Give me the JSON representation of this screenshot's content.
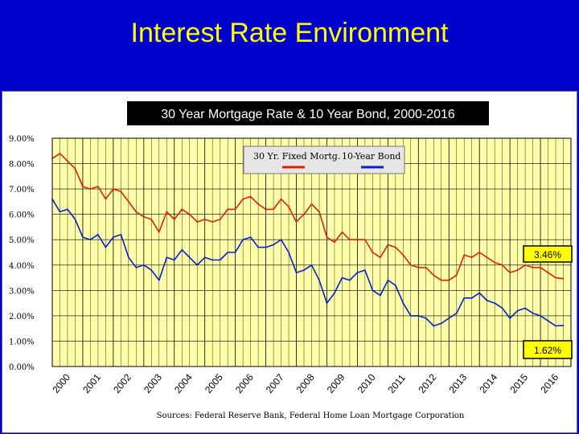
{
  "slide": {
    "title": "Interest Rate Environment"
  },
  "chart_data": {
    "type": "line",
    "title": "30 Year Mortgage Rate & 10 Year Bond, 2000-2016",
    "source": "Sources: Federal Reserve Bank, Federal Home Loan Mortgage Corporation",
    "ylim": [
      0,
      9
    ],
    "xlim": [
      2000,
      2017
    ],
    "y_ticks": [
      "0.00%",
      "1.00%",
      "2.00%",
      "3.00%",
      "4.00%",
      "5.00%",
      "6.00%",
      "7.00%",
      "8.00%",
      "9.00%"
    ],
    "x_ticks": [
      "2000",
      "2001",
      "2002",
      "2003",
      "2004",
      "2005",
      "2006",
      "2007",
      "2008",
      "2009",
      "2010",
      "2011",
      "2012",
      "2013",
      "2014",
      "2015",
      "2016"
    ],
    "grid": true,
    "legend_position": "top-center",
    "series": [
      {
        "name": "30 Yr. Fixed Mortg.",
        "color": "#dd2200",
        "x": [
          2000.0,
          2000.25,
          2000.5,
          2000.75,
          2001.0,
          2001.25,
          2001.5,
          2001.75,
          2002.0,
          2002.25,
          2002.5,
          2002.75,
          2003.0,
          2003.25,
          2003.5,
          2003.75,
          2004.0,
          2004.25,
          2004.5,
          2004.75,
          2005.0,
          2005.25,
          2005.5,
          2005.75,
          2006.0,
          2006.25,
          2006.5,
          2006.75,
          2007.0,
          2007.25,
          2007.5,
          2007.75,
          2008.0,
          2008.25,
          2008.5,
          2008.75,
          2009.0,
          2009.25,
          2009.5,
          2009.75,
          2010.0,
          2010.25,
          2010.5,
          2010.75,
          2011.0,
          2011.25,
          2011.5,
          2011.75,
          2012.0,
          2012.25,
          2012.5,
          2012.75,
          2013.0,
          2013.25,
          2013.5,
          2013.75,
          2014.0,
          2014.25,
          2014.5,
          2014.75,
          2015.0,
          2015.25,
          2015.5,
          2015.75,
          2016.0,
          2016.25,
          2016.5,
          2016.75
        ],
        "values": [
          8.2,
          8.4,
          8.1,
          7.8,
          7.1,
          7.0,
          7.1,
          6.6,
          7.0,
          6.9,
          6.5,
          6.1,
          5.9,
          5.8,
          5.3,
          6.1,
          5.8,
          6.2,
          6.0,
          5.7,
          5.8,
          5.7,
          5.8,
          6.2,
          6.2,
          6.6,
          6.7,
          6.4,
          6.2,
          6.2,
          6.6,
          6.3,
          5.7,
          6.0,
          6.4,
          6.1,
          5.1,
          4.9,
          5.3,
          5.0,
          5.0,
          5.0,
          4.5,
          4.3,
          4.8,
          4.7,
          4.4,
          4.0,
          3.9,
          3.9,
          3.6,
          3.4,
          3.4,
          3.6,
          4.4,
          4.3,
          4.5,
          4.3,
          4.1,
          4.0,
          3.7,
          3.8,
          4.0,
          3.9,
          3.9,
          3.7,
          3.5,
          3.46
        ],
        "end_label": "3.46%"
      },
      {
        "name": "10-Year Bond",
        "color": "#0022cc",
        "x": [
          2000.0,
          2000.25,
          2000.5,
          2000.75,
          2001.0,
          2001.25,
          2001.5,
          2001.75,
          2002.0,
          2002.25,
          2002.5,
          2002.75,
          2003.0,
          2003.25,
          2003.5,
          2003.75,
          2004.0,
          2004.25,
          2004.5,
          2004.75,
          2005.0,
          2005.25,
          2005.5,
          2005.75,
          2006.0,
          2006.25,
          2006.5,
          2006.75,
          2007.0,
          2007.25,
          2007.5,
          2007.75,
          2008.0,
          2008.25,
          2008.5,
          2008.75,
          2009.0,
          2009.25,
          2009.5,
          2009.75,
          2010.0,
          2010.25,
          2010.5,
          2010.75,
          2011.0,
          2011.25,
          2011.5,
          2011.75,
          2012.0,
          2012.25,
          2012.5,
          2012.75,
          2013.0,
          2013.25,
          2013.5,
          2013.75,
          2014.0,
          2014.25,
          2014.5,
          2014.75,
          2015.0,
          2015.25,
          2015.5,
          2015.75,
          2016.0,
          2016.25,
          2016.5,
          2016.75
        ],
        "values": [
          6.6,
          6.1,
          6.2,
          5.8,
          5.1,
          5.0,
          5.2,
          4.7,
          5.1,
          5.2,
          4.3,
          3.9,
          4.0,
          3.8,
          3.4,
          4.3,
          4.2,
          4.6,
          4.3,
          4.0,
          4.3,
          4.2,
          4.2,
          4.5,
          4.5,
          5.0,
          5.1,
          4.7,
          4.7,
          4.8,
          5.0,
          4.5,
          3.7,
          3.8,
          4.0,
          3.4,
          2.5,
          2.9,
          3.5,
          3.4,
          3.7,
          3.8,
          3.0,
          2.8,
          3.4,
          3.2,
          2.5,
          2.0,
          2.0,
          1.9,
          1.6,
          1.7,
          1.9,
          2.1,
          2.7,
          2.7,
          2.9,
          2.6,
          2.5,
          2.3,
          1.9,
          2.2,
          2.3,
          2.1,
          2.0,
          1.8,
          1.6,
          1.62
        ],
        "end_label": "1.62%"
      }
    ]
  }
}
